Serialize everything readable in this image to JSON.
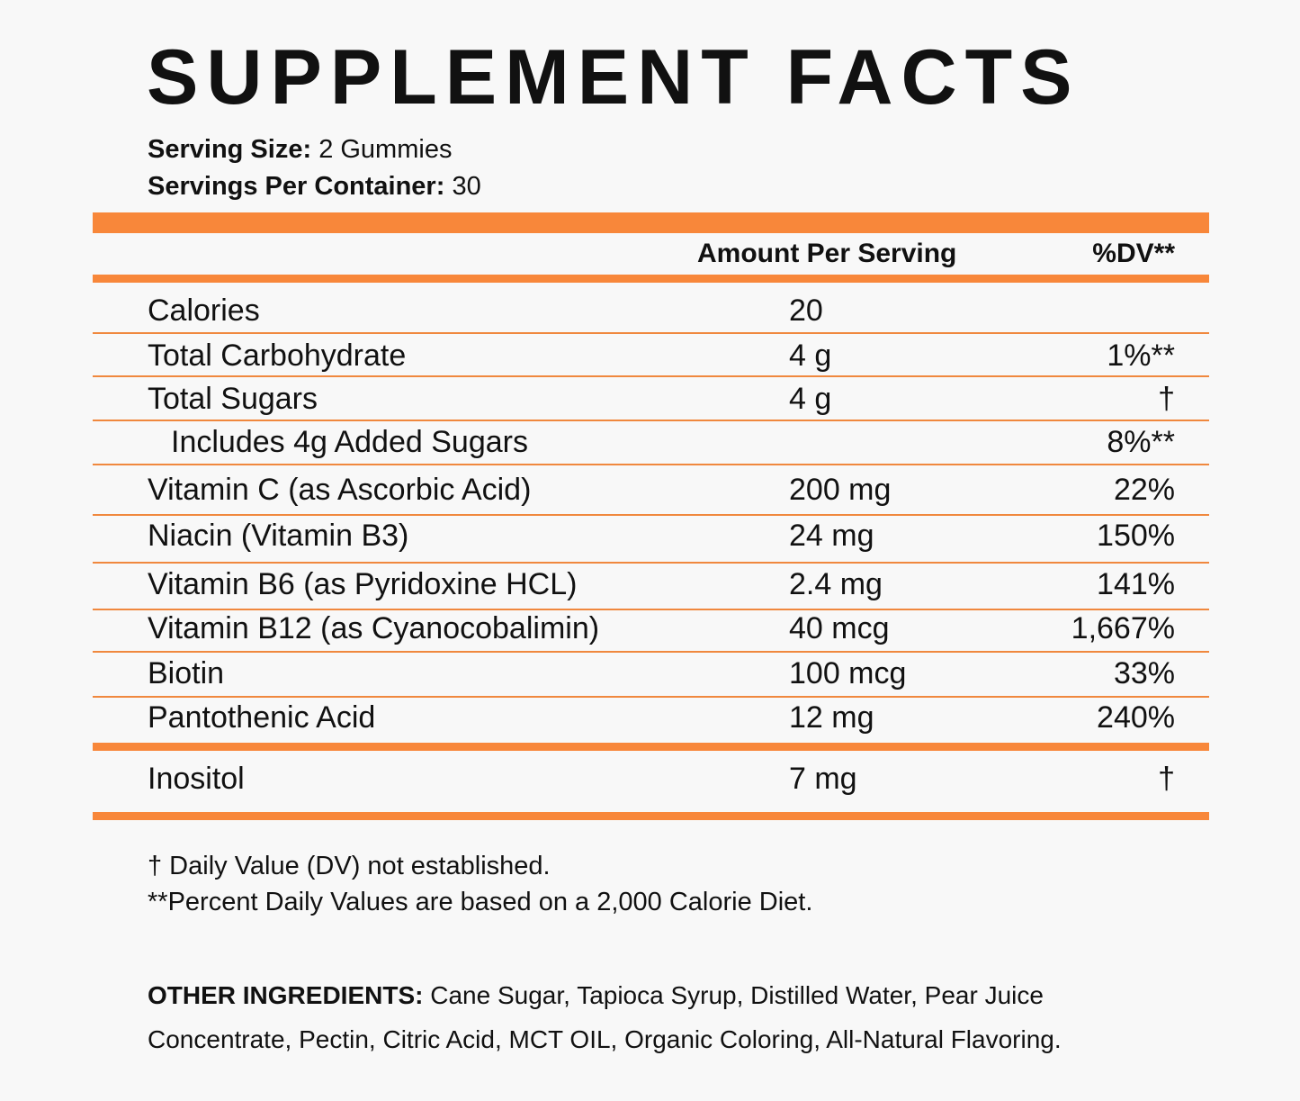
{
  "title": "SUPPLEMENT FACTS",
  "serving_size": {
    "label": "Serving Size:",
    "value": "2 Gummies"
  },
  "servings_per_container": {
    "label": "Servings Per Container:",
    "value": "30"
  },
  "headers": {
    "amount": "Amount Per Serving",
    "dv": "%DV**"
  },
  "rows": [
    {
      "name": "Calories",
      "amount": "20",
      "dv": ""
    },
    {
      "name": "Total Carbohydrate",
      "amount": "4 g",
      "dv": "1%**"
    },
    {
      "name": "Total Sugars",
      "amount": "4 g",
      "dv": "†"
    },
    {
      "name": "Includes 4g Added Sugars",
      "amount": "",
      "dv": "8%**"
    },
    {
      "name": "Vitamin C (as Ascorbic Acid)",
      "amount": "200 mg",
      "dv": "22%"
    },
    {
      "name": "Niacin (Vitamin B3)",
      "amount": "24 mg",
      "dv": "150%"
    },
    {
      "name": "Vitamin B6 (as Pyridoxine HCL)",
      "amount": "2.4 mg",
      "dv": "141%"
    },
    {
      "name": "Vitamin B12  (as Cyanocobalimin)",
      "amount": "40 mcg",
      "dv": "1,667%"
    },
    {
      "name": "Biotin",
      "amount": "100 mcg",
      "dv": "33%"
    },
    {
      "name": "Pantothenic Acid",
      "amount": "12 mg",
      "dv": "240%"
    },
    {
      "name": "Inositol",
      "amount": "7 mg",
      "dv": "†"
    }
  ],
  "footnotes": [
    "† Daily Value (DV) not established.",
    "**Percent Daily Values are based on a 2,000 Calorie Diet."
  ],
  "other_ingredients": {
    "label": "OTHER INGREDIENTS:",
    "value": " Cane Sugar, Tapioca Syrup, Distilled Water, Pear Juice Concentrate, Pectin, Citric Acid, MCT OIL, Organic Coloring, All-Natural Flavoring."
  },
  "colors": {
    "accent": "#f8873a",
    "background": "#f8f8f8"
  }
}
